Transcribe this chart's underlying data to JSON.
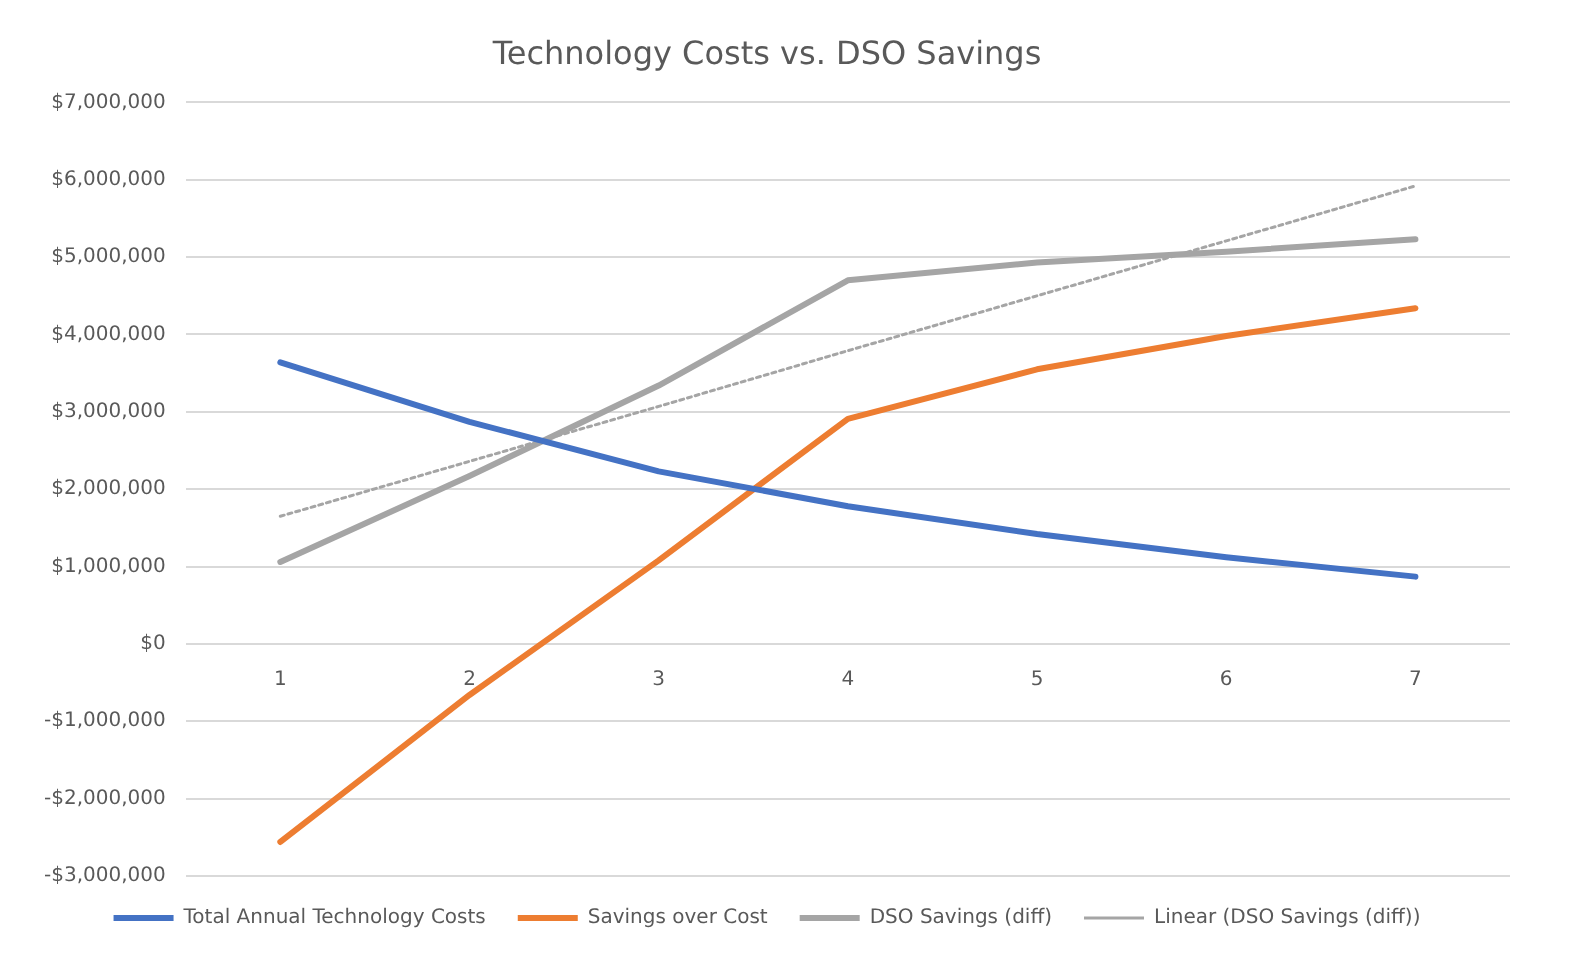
{
  "chart_data": {
    "type": "line",
    "title": "Technology Costs vs. DSO Savings",
    "categories": [
      "1",
      "2",
      "3",
      "4",
      "5",
      "6",
      "7"
    ],
    "series": [
      {
        "name": "Total Annual Technology Costs",
        "color": "#4472c4",
        "values": [
          3640000,
          2870000,
          2230000,
          1780000,
          1420000,
          1120000,
          870000
        ]
      },
      {
        "name": "Savings over Cost",
        "color": "#ed7d31",
        "values": [
          -2560000,
          -660000,
          1080000,
          2910000,
          3550000,
          3980000,
          4340000
        ]
      },
      {
        "name": "DSO Savings (diff)",
        "color": "#a5a5a5",
        "values": [
          1060000,
          2170000,
          3340000,
          4700000,
          4930000,
          5070000,
          5230000
        ]
      },
      {
        "name": "Linear (DSO Savings (diff))",
        "color": "#a5a5a5",
        "line_style": "dotted",
        "values": [
          1650000,
          2360000,
          3070000,
          3790000,
          4500000,
          5210000,
          5920000
        ]
      }
    ],
    "ylim": [
      -3000000,
      7000000
    ],
    "yticks": [
      {
        "value": -3000000,
        "label": "-$3,000,000"
      },
      {
        "value": -2000000,
        "label": "-$2,000,000"
      },
      {
        "value": -1000000,
        "label": "-$1,000,000"
      },
      {
        "value": 0,
        "label": "$0"
      },
      {
        "value": 1000000,
        "label": "$1,000,000"
      },
      {
        "value": 2000000,
        "label": "$2,000,000"
      },
      {
        "value": 3000000,
        "label": "$3,000,000"
      },
      {
        "value": 4000000,
        "label": "$4,000,000"
      },
      {
        "value": 5000000,
        "label": "$5,000,000"
      },
      {
        "value": 6000000,
        "label": "$6,000,000"
      },
      {
        "value": 7000000,
        "label": "$7,000,000"
      }
    ],
    "grid": "y",
    "legend": "bottom",
    "marker": "none",
    "line_style": "solid"
  }
}
